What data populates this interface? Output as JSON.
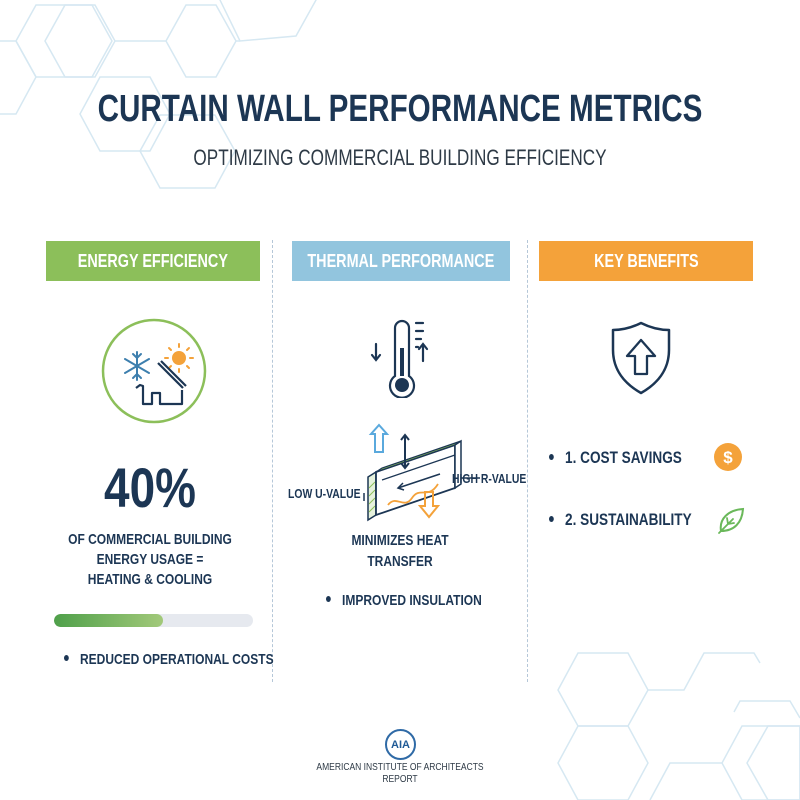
{
  "header": {
    "title": "CURTAIN WALL PERFORMANCE METRICS",
    "subtitle": "OPTIMIZING COMMERCIAL BUILDING EFFICIENCY"
  },
  "columns": {
    "energy": {
      "label": "ENERGY EFFICIENCY",
      "color": "#8cbf5a",
      "icon": "house-snowflake-sun-icon",
      "stat": "40%",
      "description_lines": [
        "OF COMMERCIAL BUILDING",
        "ENERGY USAGE =",
        "HEATING & COOLING"
      ],
      "progress_percent": 55,
      "bullet": "REDUCED OPERATIONAL COSTS"
    },
    "thermal": {
      "label": "THERMAL PERFORMANCE",
      "color": "#92c5de",
      "icon": "thermometer-icon",
      "diagram": {
        "left_label": "LOW U-VALUE",
        "right_label": "HIGH R-VALUE"
      },
      "description_lines": [
        "MINIMIZES HEAT",
        "TRANSFER"
      ],
      "bullet": "IMPROVED INSULATION"
    },
    "benefits": {
      "label": "KEY BENEFITS",
      "color": "#f4a23a",
      "icon": "shield-arrow-up-icon",
      "items": [
        {
          "label": "1. COST SAVINGS",
          "icon": "dollar-coin-icon"
        },
        {
          "label": "2. SUSTAINABILITY",
          "icon": "leaf-icon"
        }
      ]
    }
  },
  "footer": {
    "logo_text": "AIA",
    "line1": "AMERICAN INSTITUTE OF ARCHITEACTS",
    "line2": "REPORT"
  },
  "colors": {
    "navy": "#1c3654",
    "green": "#8cbf5a",
    "blue": "#92c5de",
    "orange": "#f4a23a",
    "hex_outline": "#d4e6f1"
  }
}
